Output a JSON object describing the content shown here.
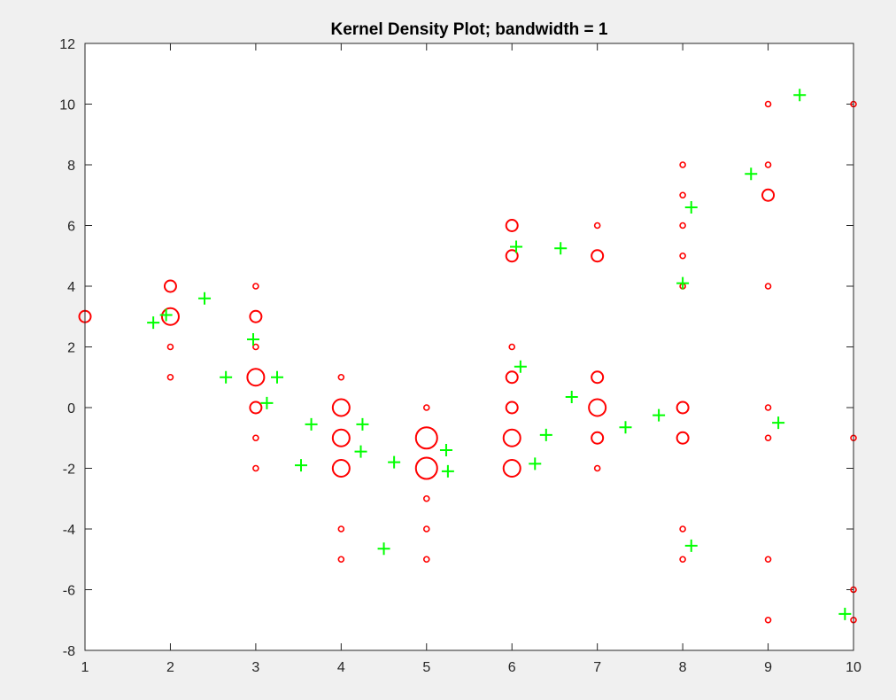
{
  "chart_data": {
    "type": "scatter",
    "title": "Kernel Density Plot; bandwidth = 1",
    "xlabel": "",
    "ylabel": "",
    "xlim": [
      1,
      10
    ],
    "ylim": [
      -8,
      12
    ],
    "xticks": [
      1,
      2,
      3,
      4,
      5,
      6,
      7,
      8,
      9,
      10
    ],
    "yticks": [
      -8,
      -6,
      -4,
      -2,
      0,
      2,
      4,
      6,
      8,
      10,
      12
    ],
    "grid": false,
    "legend": "none",
    "series": [
      {
        "marker": "circle",
        "color": "#ff0000",
        "points": [
          {
            "x": 1,
            "y": 3,
            "size": 2
          },
          {
            "x": 2,
            "y": 4,
            "size": 2
          },
          {
            "x": 2,
            "y": 3,
            "size": 3
          },
          {
            "x": 2,
            "y": 2,
            "size": 1
          },
          {
            "x": 2,
            "y": 1,
            "size": 1
          },
          {
            "x": 3,
            "y": 4,
            "size": 1
          },
          {
            "x": 3,
            "y": 3,
            "size": 2
          },
          {
            "x": 3,
            "y": 2,
            "size": 1
          },
          {
            "x": 3,
            "y": 1,
            "size": 3
          },
          {
            "x": 3,
            "y": 0,
            "size": 2
          },
          {
            "x": 3,
            "y": -1,
            "size": 1
          },
          {
            "x": 3,
            "y": -2,
            "size": 1
          },
          {
            "x": 4,
            "y": 1,
            "size": 1
          },
          {
            "x": 4,
            "y": 0,
            "size": 3
          },
          {
            "x": 4,
            "y": -1,
            "size": 3
          },
          {
            "x": 4,
            "y": -2,
            "size": 3
          },
          {
            "x": 4,
            "y": -4,
            "size": 1
          },
          {
            "x": 4,
            "y": -5,
            "size": 1
          },
          {
            "x": 5,
            "y": 0,
            "size": 1
          },
          {
            "x": 5,
            "y": -1,
            "size": 4
          },
          {
            "x": 5,
            "y": -2,
            "size": 4
          },
          {
            "x": 5,
            "y": -3,
            "size": 1
          },
          {
            "x": 5,
            "y": -4,
            "size": 1
          },
          {
            "x": 5,
            "y": -5,
            "size": 1
          },
          {
            "x": 6,
            "y": 6,
            "size": 2
          },
          {
            "x": 6,
            "y": 5,
            "size": 2
          },
          {
            "x": 6,
            "y": 2,
            "size": 1
          },
          {
            "x": 6,
            "y": 1,
            "size": 2
          },
          {
            "x": 6,
            "y": 0,
            "size": 2
          },
          {
            "x": 6,
            "y": -1,
            "size": 3
          },
          {
            "x": 6,
            "y": -2,
            "size": 3
          },
          {
            "x": 7,
            "y": 6,
            "size": 1
          },
          {
            "x": 7,
            "y": 5,
            "size": 2
          },
          {
            "x": 7,
            "y": 1,
            "size": 2
          },
          {
            "x": 7,
            "y": 0,
            "size": 3
          },
          {
            "x": 7,
            "y": -1,
            "size": 2
          },
          {
            "x": 7,
            "y": -2,
            "size": 1
          },
          {
            "x": 8,
            "y": 8,
            "size": 1
          },
          {
            "x": 8,
            "y": 7,
            "size": 1
          },
          {
            "x": 8,
            "y": 6,
            "size": 1
          },
          {
            "x": 8,
            "y": 5,
            "size": 1
          },
          {
            "x": 8,
            "y": 4,
            "size": 1
          },
          {
            "x": 8,
            "y": 0,
            "size": 2
          },
          {
            "x": 8,
            "y": -1,
            "size": 2
          },
          {
            "x": 8,
            "y": -4,
            "size": 1
          },
          {
            "x": 8,
            "y": -5,
            "size": 1
          },
          {
            "x": 9,
            "y": 10,
            "size": 1
          },
          {
            "x": 9,
            "y": 8,
            "size": 1
          },
          {
            "x": 9,
            "y": 7,
            "size": 2
          },
          {
            "x": 9,
            "y": 4,
            "size": 1
          },
          {
            "x": 9,
            "y": 0,
            "size": 1
          },
          {
            "x": 9,
            "y": -1,
            "size": 1
          },
          {
            "x": 9,
            "y": -5,
            "size": 1
          },
          {
            "x": 9,
            "y": -7,
            "size": 1
          },
          {
            "x": 10,
            "y": 10,
            "size": 1
          },
          {
            "x": 10,
            "y": -1,
            "size": 1
          },
          {
            "x": 10,
            "y": -6,
            "size": 1
          },
          {
            "x": 10,
            "y": -7,
            "size": 1
          }
        ]
      },
      {
        "marker": "plus",
        "color": "#00ff00",
        "points": [
          {
            "x": 1.8,
            "y": 2.8
          },
          {
            "x": 1.95,
            "y": 3.05
          },
          {
            "x": 2.4,
            "y": 3.6
          },
          {
            "x": 2.65,
            "y": 1.0
          },
          {
            "x": 2.97,
            "y": 2.25
          },
          {
            "x": 3.13,
            "y": 0.15
          },
          {
            "x": 3.25,
            "y": 1.0
          },
          {
            "x": 3.53,
            "y": -1.9
          },
          {
            "x": 3.65,
            "y": -0.55
          },
          {
            "x": 4.23,
            "y": -1.45
          },
          {
            "x": 4.25,
            "y": -0.55
          },
          {
            "x": 4.5,
            "y": -4.65
          },
          {
            "x": 4.62,
            "y": -1.8
          },
          {
            "x": 5.23,
            "y": -1.4
          },
          {
            "x": 5.25,
            "y": -2.1
          },
          {
            "x": 6.05,
            "y": 5.3
          },
          {
            "x": 6.1,
            "y": 1.35
          },
          {
            "x": 6.27,
            "y": -1.85
          },
          {
            "x": 6.4,
            "y": -0.9
          },
          {
            "x": 6.57,
            "y": 5.25
          },
          {
            "x": 6.7,
            "y": 0.35
          },
          {
            "x": 7.33,
            "y": -0.65
          },
          {
            "x": 7.72,
            "y": -0.25
          },
          {
            "x": 8.0,
            "y": 4.1
          },
          {
            "x": 8.1,
            "y": 6.6
          },
          {
            "x": 8.1,
            "y": -4.55
          },
          {
            "x": 8.8,
            "y": 7.7
          },
          {
            "x": 9.12,
            "y": -0.5
          },
          {
            "x": 9.37,
            "y": 10.3
          },
          {
            "x": 9.9,
            "y": -6.8
          }
        ]
      }
    ]
  }
}
